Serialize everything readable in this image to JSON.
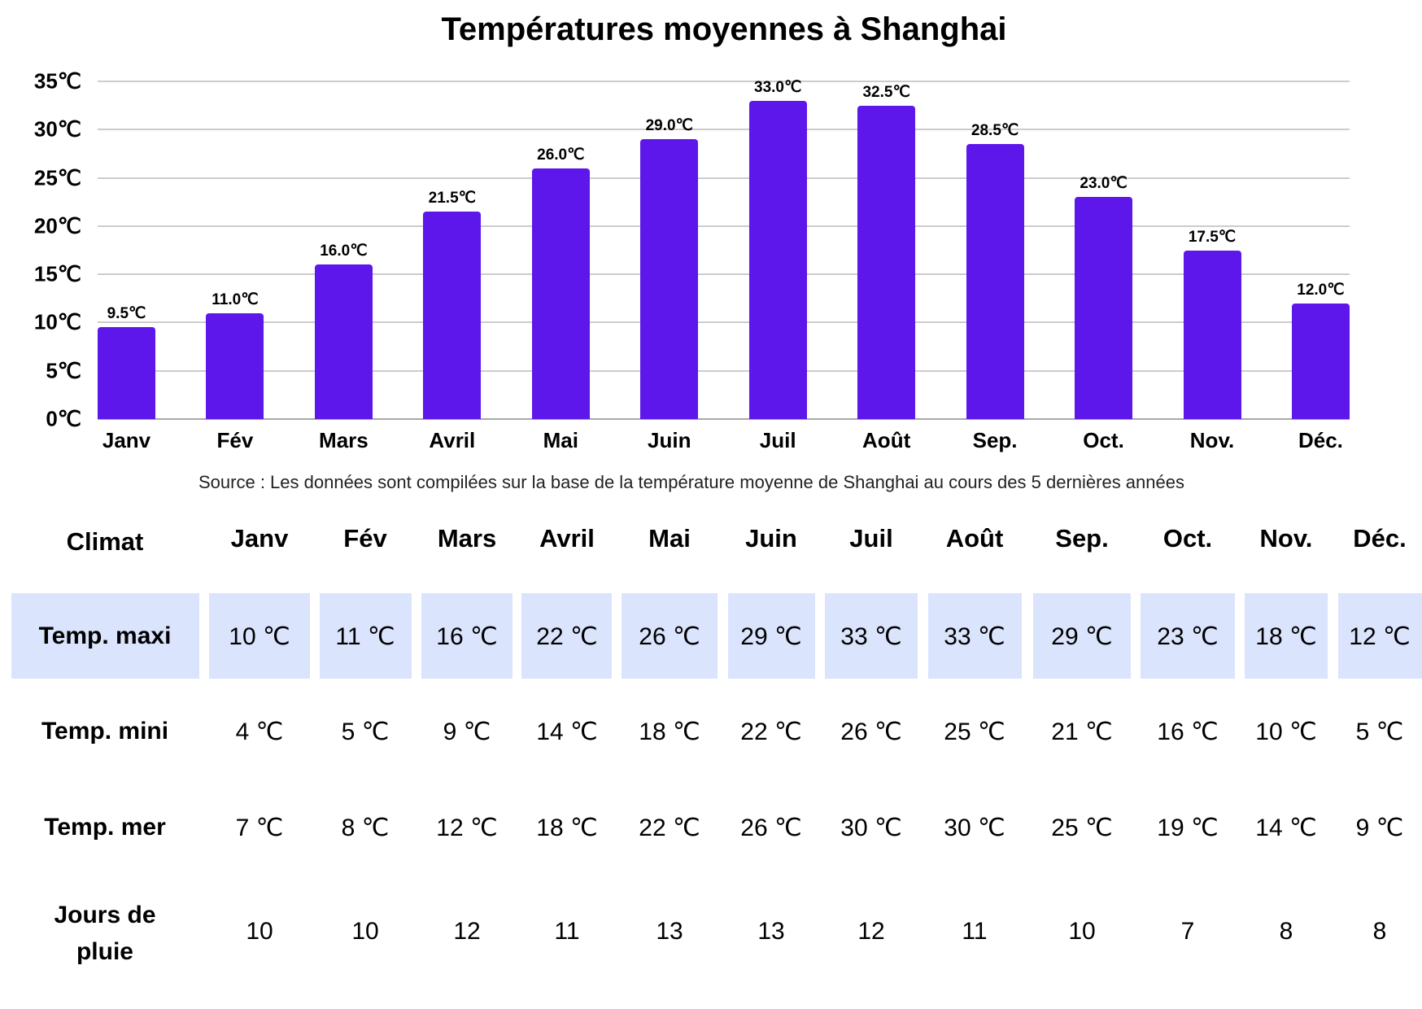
{
  "chart_data": {
    "type": "bar",
    "title": "Températures moyennes à Shanghai",
    "xlabel": "",
    "ylabel": "",
    "ylim": [
      0,
      35
    ],
    "yticks": [
      "0℃",
      "5℃",
      "10℃",
      "15℃",
      "20℃",
      "25℃",
      "30℃",
      "35℃"
    ],
    "grid": true,
    "legend": null,
    "categories": [
      "Janv",
      "Fév",
      "Mars",
      "Avril",
      "Mai",
      "Juin",
      "Juil",
      "Août",
      "Sep.",
      "Oct.",
      "Nov.",
      "Déc."
    ],
    "values": [
      9.5,
      11.0,
      16.0,
      21.5,
      26.0,
      29.0,
      33.0,
      32.5,
      28.5,
      23.0,
      17.5,
      12.0
    ],
    "data_labels": [
      "9.5℃",
      "11.0℃",
      "16.0℃",
      "21.5℃",
      "26.0℃",
      "29.0℃",
      "33.0℃",
      "32.5℃",
      "28.5℃",
      "23.0℃",
      "17.5℃",
      "12.0℃"
    ],
    "bar_color": "#5d17eb"
  },
  "source_note": "Source : Les données sont compilées sur la base de la température moyenne de Shanghai au cours des 5 dernières années",
  "table": {
    "header": [
      "Climat",
      "Janv",
      "Fév",
      "Mars",
      "Avril",
      "Mai",
      "Juin",
      "Juil",
      "Août",
      "Sep.",
      "Oct.",
      "Nov.",
      "Déc."
    ],
    "rows": [
      {
        "label": "Temp. maxi",
        "highlight": "#dbe4fd",
        "values": [
          "10 ℃",
          "11 ℃",
          "16 ℃",
          "22 ℃",
          "26 ℃",
          "29 ℃",
          "33 ℃",
          "33 ℃",
          "29 ℃",
          "23 ℃",
          "18 ℃",
          "12 ℃"
        ]
      },
      {
        "label": "Temp. mini",
        "values": [
          "4 ℃",
          "5 ℃",
          "9 ℃",
          "14 ℃",
          "18 ℃",
          "22 ℃",
          "26 ℃",
          "25 ℃",
          "21 ℃",
          "16 ℃",
          "10 ℃",
          "5 ℃"
        ]
      },
      {
        "label": "Temp. mer",
        "values": [
          "7 ℃",
          "8 ℃",
          "12 ℃",
          "18 ℃",
          "22 ℃",
          "26 ℃",
          "30 ℃",
          "30 ℃",
          "25 ℃",
          "19 ℃",
          "14 ℃",
          "9 ℃"
        ]
      },
      {
        "label": "Jours de pluie",
        "label_lines": [
          "Jours de",
          "pluie"
        ],
        "values": [
          "10",
          "10",
          "12",
          "11",
          "13",
          "13",
          "12",
          "11",
          "10",
          "7",
          "8",
          "8"
        ]
      }
    ]
  }
}
